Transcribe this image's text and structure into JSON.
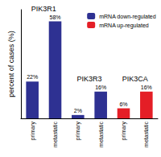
{
  "chart_data": {
    "type": "bar",
    "ylabel": "percent of cases (%)",
    "categories": [
      "primary",
      "metastatic",
      "primary",
      "metastatic",
      "primary",
      "metastatic"
    ],
    "group_labels": [
      "PIK3R1",
      null,
      "PIK3R3",
      null,
      "PIK3CA",
      null
    ],
    "series": [
      {
        "name": "mRNA down-regulated",
        "color": "#2e3192",
        "values": [
          22,
          58,
          2,
          16,
          null,
          null
        ],
        "value_labels": [
          "22%",
          "58%",
          "2%",
          "16%",
          null,
          null
        ]
      },
      {
        "name": "mRNA up-regulated",
        "color": "#e41e26",
        "values": [
          null,
          null,
          null,
          null,
          6,
          16
        ],
        "value_labels": [
          null,
          null,
          null,
          null,
          "6%",
          "16%"
        ]
      }
    ],
    "ylim": [
      0,
      65
    ],
    "tick_labels": "x",
    "grid": false,
    "legend": "top right",
    "data_labels": true
  }
}
